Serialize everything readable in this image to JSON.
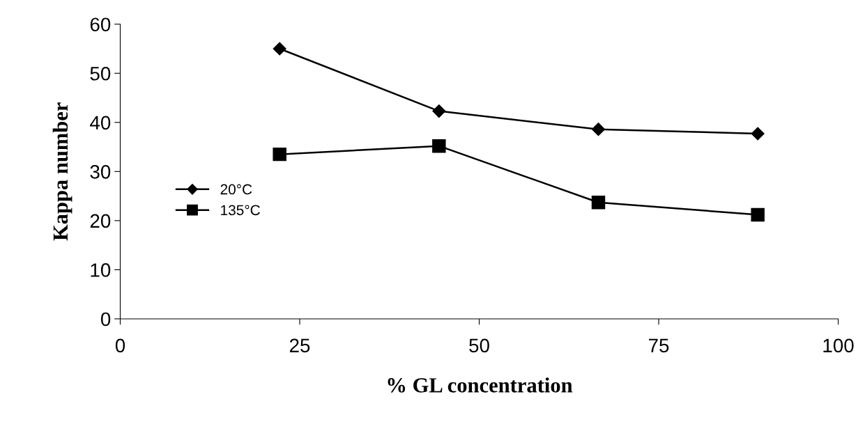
{
  "chart_data": {
    "type": "line",
    "xlabel": "% GL concentration",
    "ylabel": "Kappa number",
    "x": [
      22.2,
      44.4,
      66.6,
      88.8
    ],
    "series": [
      {
        "name": "20°C",
        "color": "#000000",
        "marker": "diamond",
        "values": [
          55.0,
          42.3,
          38.6,
          37.7
        ]
      },
      {
        "name": "135°C",
        "color": "#000000",
        "marker": "square",
        "values": [
          33.5,
          35.2,
          23.7,
          21.2
        ]
      }
    ],
    "xlim": [
      0,
      100
    ],
    "xticks": [
      0,
      25,
      50,
      75,
      100
    ],
    "ylim": [
      0,
      60
    ],
    "yticks": [
      0,
      10,
      20,
      30,
      40,
      50,
      60
    ],
    "grid": false,
    "legend": "left",
    "line_style": "solid"
  }
}
